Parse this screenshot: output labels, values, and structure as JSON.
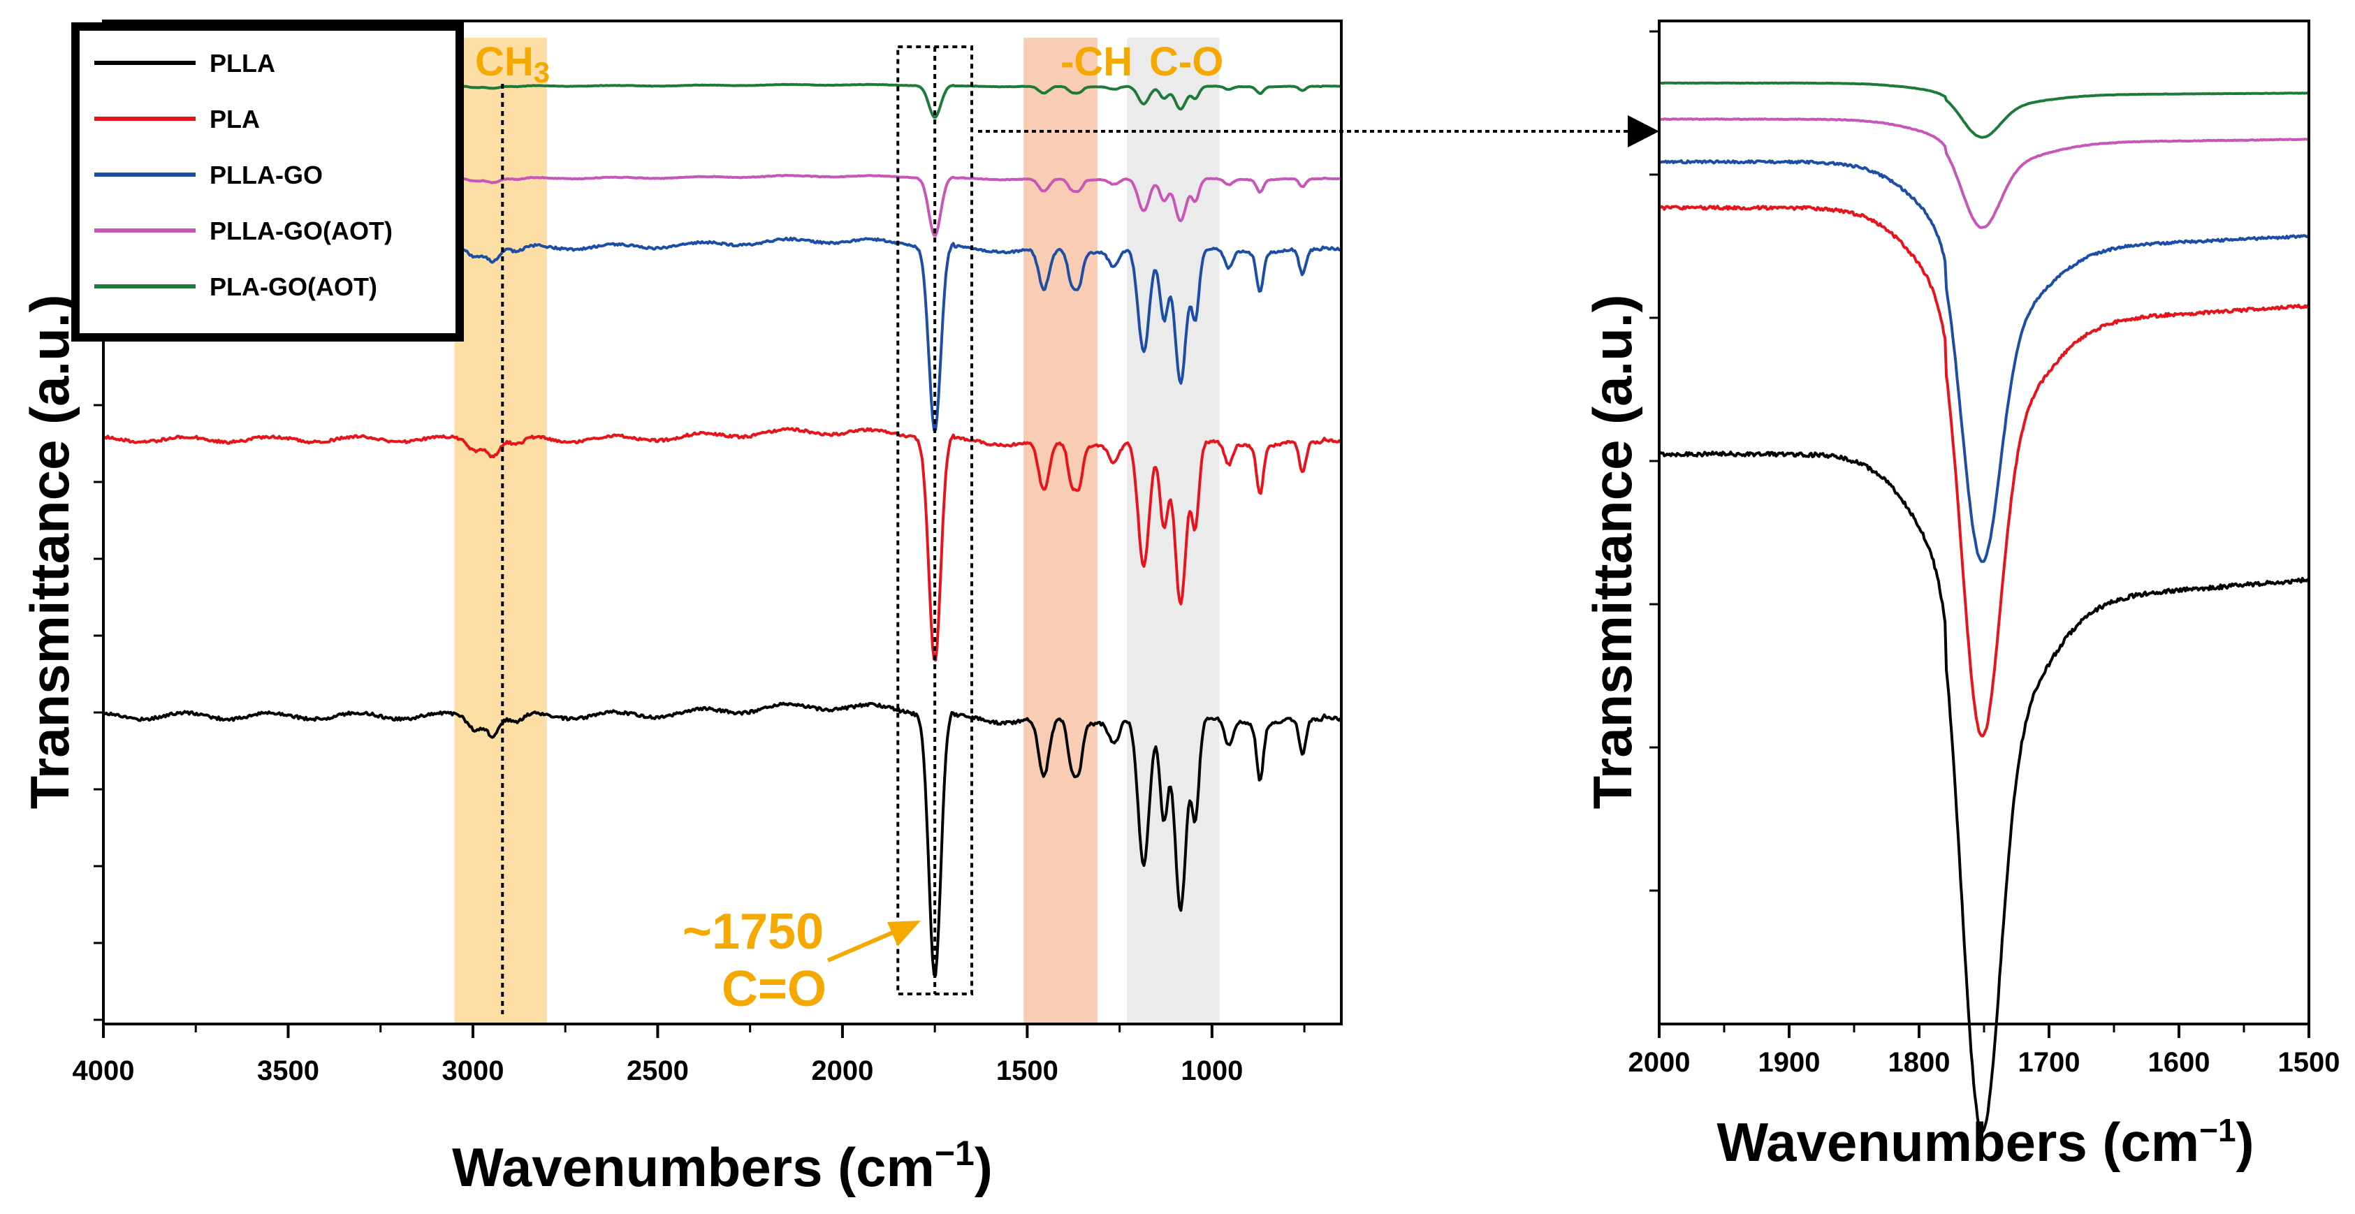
{
  "chart_data": [
    {
      "type": "line",
      "xlabel": "Wavenumbers (cm",
      "xlabel_sup": "−1",
      "xlabel_close": ")",
      "ylabel": "Transmittance (a.u.)",
      "xlim": [
        4000,
        650
      ],
      "x_ticks": [
        4000,
        3500,
        3000,
        2500,
        2000,
        1500,
        1000
      ],
      "tick_labels": [
        "4000",
        "3500",
        "3000",
        "2500",
        "2000",
        "1500",
        "1000"
      ],
      "legend": {
        "placement": "top-left",
        "entries": [
          {
            "name": "PLLA",
            "color": "#000000"
          },
          {
            "name": "PLA",
            "color": "#E8141C"
          },
          {
            "name": "PLLA-GO",
            "color": "#1D4EA6"
          },
          {
            "name": "PLLA-GO(AOT)",
            "color": "#C855B8"
          },
          {
            "name": "PLA-GO(AOT)",
            "color": "#1E7A3A"
          }
        ]
      },
      "series": [
        {
          "name": "PLLA",
          "color": "#000000",
          "baseline": 0.0,
          "scale": 1.0
        },
        {
          "name": "PLA",
          "color": "#E8141C",
          "baseline": 1.8,
          "scale": 0.85
        },
        {
          "name": "PLLA-GO",
          "color": "#1D4EA6",
          "baseline": 3.05,
          "scale": 0.7
        },
        {
          "name": "PLLA-GO(AOT)",
          "color": "#C855B8",
          "baseline": 3.5,
          "scale": 0.22
        },
        {
          "name": "PLA-GO(AOT)",
          "color": "#1E7A3A",
          "baseline": 4.1,
          "scale": 0.12
        }
      ],
      "bands": [
        {
          "name": "CH3",
          "label": "CH",
          "label_sub": "3",
          "from": 3050,
          "to": 2800,
          "color": "#FDDFA6"
        },
        {
          "name": "-CH",
          "label": "-CH",
          "from": 1510,
          "to": 1310,
          "color": "#F9CDB4"
        },
        {
          "name": "C-O",
          "label": "C-O",
          "from": 1230,
          "to": 980,
          "color": "#EBEBEB"
        }
      ],
      "carbonyl_box": {
        "from": 1850,
        "to": 1650
      },
      "annotation": {
        "line1": "~1750",
        "line2": "C=O",
        "x": 1750
      }
    },
    {
      "type": "line",
      "xlabel": "Wavenumbers (cm",
      "xlabel_sup": "−1",
      "xlabel_close": ")",
      "ylabel": "Transmittance (a.u.)",
      "xlim": [
        2000,
        1500
      ],
      "x_ticks": [
        2000,
        1900,
        1800,
        1700,
        1600,
        1500
      ],
      "tick_labels": [
        "2000",
        "1900",
        "1800",
        "1700",
        "1600",
        "1500"
      ],
      "series": [
        {
          "name": "PLLA",
          "color": "#000000",
          "baseline": 0.0,
          "scale": 1.0
        },
        {
          "name": "PLA",
          "color": "#E8141C",
          "baseline": 0.75,
          "scale": 0.78
        },
        {
          "name": "PLLA-GO",
          "color": "#1D4EA6",
          "baseline": 0.89,
          "scale": 0.59
        },
        {
          "name": "PLLA-GO(AOT)",
          "color": "#C855B8",
          "baseline": 1.02,
          "scale": 0.16
        },
        {
          "name": "PLA-GO(AOT)",
          "color": "#1E7A3A",
          "baseline": 1.13,
          "scale": 0.08
        }
      ]
    }
  ]
}
